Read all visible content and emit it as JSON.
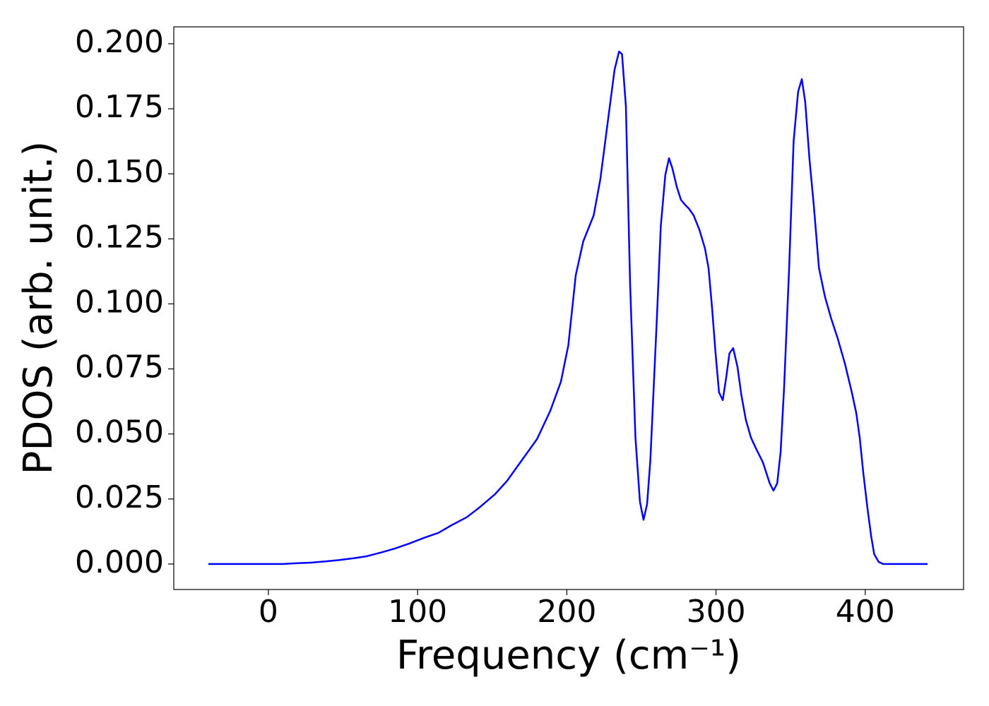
{
  "chart_data": {
    "type": "line",
    "xlabel": "Frequency (cm⁻¹)",
    "ylabel": "PDOS (arb. unit.)",
    "xlim": [
      -63.4,
      465.9
    ],
    "ylim": [
      -0.0098,
      0.2065
    ],
    "xticks": [
      0,
      100,
      200,
      300,
      400
    ],
    "yticks": [
      {
        "value": 0,
        "label": "0.000"
      },
      {
        "value": 0.025,
        "label": "0.025"
      },
      {
        "value": 0.05,
        "label": "0.050"
      },
      {
        "value": 0.075,
        "label": "0.075"
      },
      {
        "value": 0.1,
        "label": "0.100"
      },
      {
        "value": 0.125,
        "label": "0.125"
      },
      {
        "value": 0.15,
        "label": "0.150"
      },
      {
        "value": 0.175,
        "label": "0.175"
      },
      {
        "value": 0.2,
        "label": "0.200"
      }
    ],
    "series": [
      {
        "color": "#0000ff",
        "x": [
          -40.2,
          9.5,
          19,
          28,
          38,
          47,
          57,
          66,
          76,
          85,
          95,
          104,
          114,
          123,
          133,
          142,
          152,
          160,
          170,
          180,
          189,
          196,
          201,
          206,
          211,
          218,
          222.5,
          227,
          232,
          235,
          237,
          239.6,
          242.4,
          246,
          249,
          251.4,
          253.8,
          256,
          260.4,
          263,
          266,
          268.5,
          270.8,
          273.7,
          276.5,
          279.4,
          282,
          285,
          288.8,
          292.6,
          295,
          297.3,
          299.7,
          302,
          304.5,
          306.8,
          309,
          311.5,
          314.4,
          317,
          320,
          323.4,
          326.7,
          331.4,
          336,
          338.5,
          341,
          343.3,
          345.6,
          349,
          352,
          355,
          357.5,
          359.8,
          362.6,
          365.5,
          369,
          373,
          377,
          381.6,
          386.4,
          391,
          394,
          396.3,
          398.7,
          401.5,
          404,
          406,
          409,
          412,
          441.8
        ],
        "values": [
          0,
          0,
          0.0003,
          0.0005,
          0.001,
          0.0015,
          0.0022,
          0.003,
          0.0045,
          0.006,
          0.008,
          0.01,
          0.012,
          0.015,
          0.018,
          0.022,
          0.0269,
          0.032,
          0.04,
          0.048,
          0.059,
          0.07,
          0.084,
          0.111,
          0.124,
          0.134,
          0.148,
          0.168,
          0.19,
          0.197,
          0.196,
          0.176,
          0.108,
          0.0486,
          0.024,
          0.017,
          0.023,
          0.04,
          0.095,
          0.13,
          0.1495,
          0.156,
          0.152,
          0.145,
          0.14,
          0.138,
          0.1365,
          0.134,
          0.1286,
          0.1213,
          0.1137,
          0.0988,
          0.081,
          0.066,
          0.063,
          0.0716,
          0.081,
          0.083,
          0.0757,
          0.0649,
          0.0554,
          0.0486,
          0.0445,
          0.0391,
          0.031,
          0.0282,
          0.031,
          0.0431,
          0.0676,
          0.1137,
          0.1625,
          0.1815,
          0.1864,
          0.1775,
          0.1558,
          0.138,
          0.1137,
          0.1028,
          0.0947,
          0.0866,
          0.077,
          0.066,
          0.058,
          0.0486,
          0.035,
          0.0214,
          0.0106,
          0.0038,
          0.0008,
          0,
          0
        ]
      }
    ]
  }
}
